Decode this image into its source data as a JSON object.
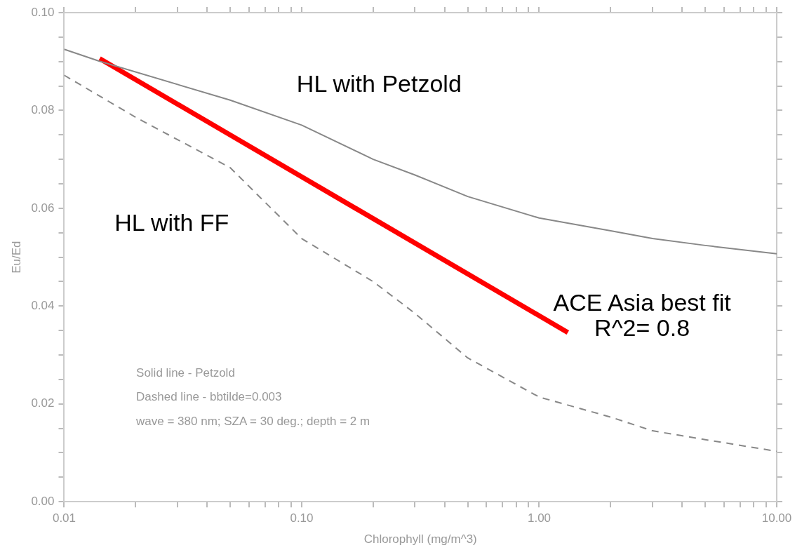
{
  "chart_data": {
    "type": "line",
    "xlabel": "Chlorophyll (mg/m^3)",
    "ylabel": "Eu/Ed",
    "log": "x",
    "grid": false,
    "legend": false,
    "marker": "none",
    "xlim": [
      0.01,
      10
    ],
    "ylim": [
      0,
      0.1
    ],
    "xticks": [
      {
        "value": 0.01,
        "label": "0.01"
      },
      {
        "value": 0.02,
        "label": null
      },
      {
        "value": 0.03,
        "label": null
      },
      {
        "value": 0.04,
        "label": null
      },
      {
        "value": 0.05,
        "label": null
      },
      {
        "value": 0.06,
        "label": null
      },
      {
        "value": 0.07,
        "label": null
      },
      {
        "value": 0.08,
        "label": null
      },
      {
        "value": 0.09,
        "label": null
      },
      {
        "value": 0.1,
        "label": "0.10"
      },
      {
        "value": 0.2,
        "label": null
      },
      {
        "value": 0.3,
        "label": null
      },
      {
        "value": 0.4,
        "label": null
      },
      {
        "value": 0.5,
        "label": null
      },
      {
        "value": 0.6,
        "label": null
      },
      {
        "value": 0.7,
        "label": null
      },
      {
        "value": 0.8,
        "label": null
      },
      {
        "value": 0.9,
        "label": null
      },
      {
        "value": 1,
        "label": "1.00"
      },
      {
        "value": 2,
        "label": null
      },
      {
        "value": 3,
        "label": null
      },
      {
        "value": 4,
        "label": null
      },
      {
        "value": 5,
        "label": null
      },
      {
        "value": 6,
        "label": null
      },
      {
        "value": 7,
        "label": null
      },
      {
        "value": 8,
        "label": null
      },
      {
        "value": 9,
        "label": null
      },
      {
        "value": 10,
        "label": "10.00"
      }
    ],
    "yticks": [
      {
        "value": 0,
        "label": "0.00"
      },
      {
        "value": 0.005,
        "label": null
      },
      {
        "value": 0.01,
        "label": null
      },
      {
        "value": 0.015,
        "label": null
      },
      {
        "value": 0.02,
        "label": "0.02"
      },
      {
        "value": 0.025,
        "label": null
      },
      {
        "value": 0.03,
        "label": null
      },
      {
        "value": 0.035,
        "label": null
      },
      {
        "value": 0.04,
        "label": "0.04"
      },
      {
        "value": 0.045,
        "label": null
      },
      {
        "value": 0.05,
        "label": null
      },
      {
        "value": 0.055,
        "label": null
      },
      {
        "value": 0.06,
        "label": "0.06"
      },
      {
        "value": 0.065,
        "label": null
      },
      {
        "value": 0.07,
        "label": null
      },
      {
        "value": 0.075,
        "label": null
      },
      {
        "value": 0.08,
        "label": "0.08"
      },
      {
        "value": 0.085,
        "label": null
      },
      {
        "value": 0.09,
        "label": null
      },
      {
        "value": 0.095,
        "label": null
      },
      {
        "value": 0.1,
        "label": "0.10"
      }
    ],
    "series": [
      {
        "color": "#888888",
        "line_style": "solid",
        "x": [
          0.01,
          0.014,
          0.05,
          0.1,
          0.2,
          0.3,
          0.5,
          1,
          2,
          3,
          5,
          10
        ],
        "values": [
          0.0925,
          0.0901,
          0.0821,
          0.077,
          0.07,
          0.0668,
          0.0624,
          0.058,
          0.0554,
          0.0538,
          0.0524,
          0.0507
        ]
      },
      {
        "color": "#888888",
        "line_style": "dashed",
        "x": [
          0.01,
          0.02,
          0.05,
          0.1,
          0.2,
          0.3,
          0.5,
          1,
          2,
          3,
          5,
          10
        ],
        "values": [
          0.0872,
          0.0786,
          0.0683,
          0.0538,
          0.045,
          0.0385,
          0.0294,
          0.0214,
          0.0173,
          0.0145,
          0.0127,
          0.0103
        ]
      },
      {
        "color": "#ff0000",
        "line_style": "solid",
        "x": [
          0.0141,
          1.32
        ],
        "values": [
          0.0906,
          0.0346
        ]
      }
    ],
    "annotations": [
      "HL with Petzold",
      "HL with FF",
      "ACE Asia best fit",
      "R^2= 0.8",
      "Solid line - Petzold",
      "Dashed line - bbtilde=0.003",
      "wave = 380 nm; SZA = 30 deg.; depth = 2 m"
    ]
  }
}
